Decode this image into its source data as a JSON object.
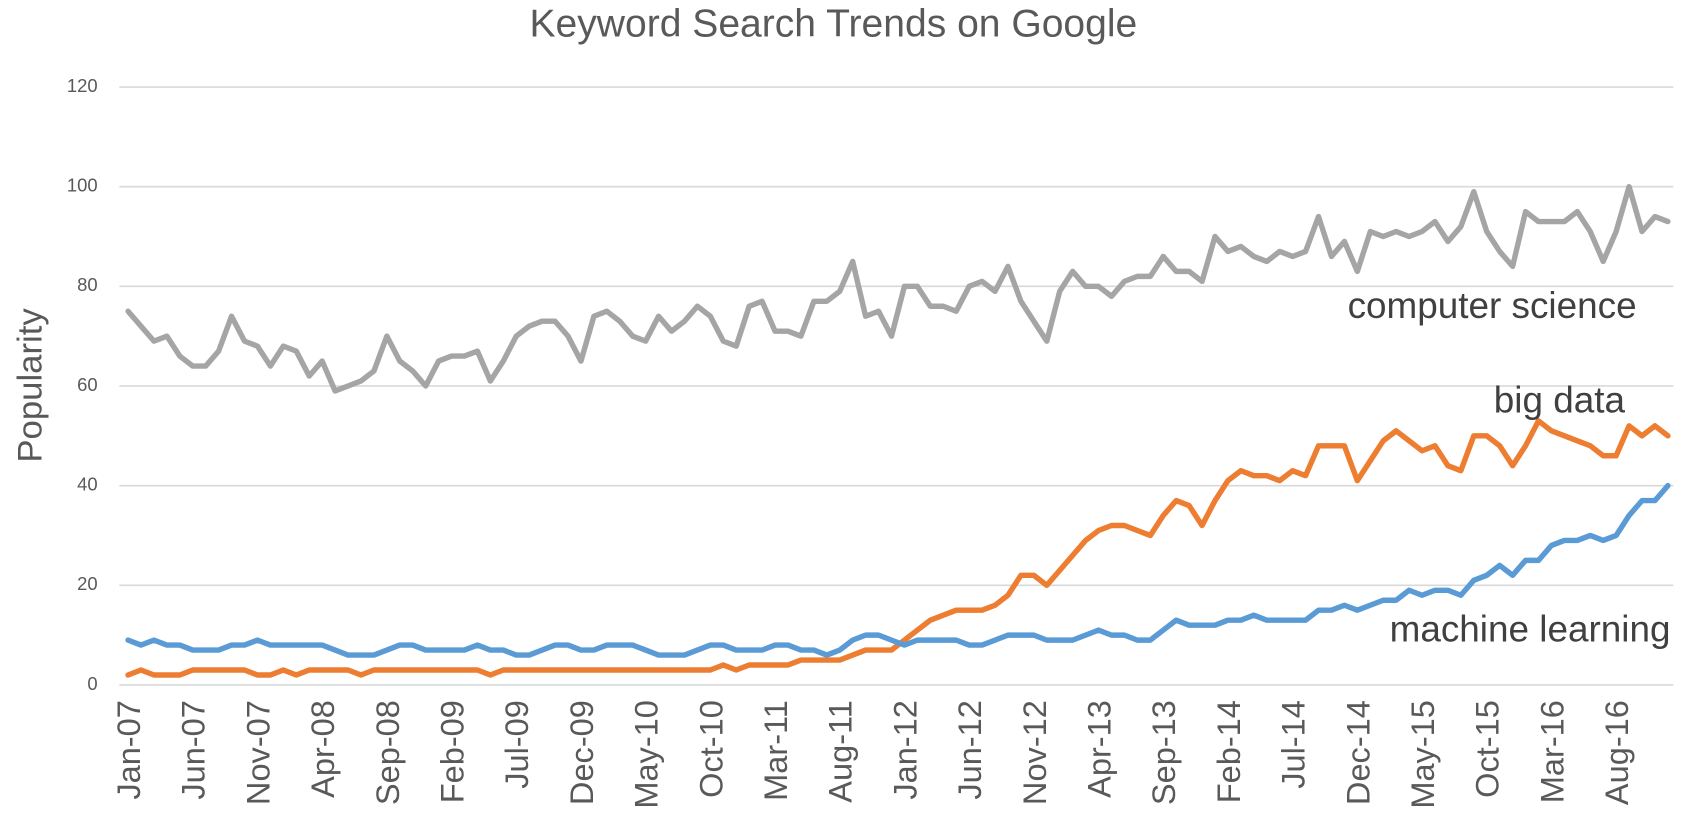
{
  "chart_data": {
    "type": "line",
    "title": "Keyword Search  Trends on Google",
    "ylabel": "Popularity",
    "categories": [
      "Jan-07",
      null,
      null,
      null,
      null,
      "Jun-07",
      null,
      null,
      null,
      null,
      "Nov-07",
      null,
      null,
      null,
      null,
      "Apr-08",
      null,
      null,
      null,
      null,
      "Sep-08",
      null,
      null,
      null,
      null,
      "Feb-09",
      null,
      null,
      null,
      null,
      "Jul-09",
      null,
      null,
      null,
      null,
      "Dec-09",
      null,
      null,
      null,
      null,
      "May-10",
      null,
      null,
      null,
      null,
      "Oct-10",
      null,
      null,
      null,
      null,
      "Mar-11",
      null,
      null,
      null,
      null,
      "Aug-11",
      null,
      null,
      null,
      null,
      "Jan-12",
      null,
      null,
      null,
      null,
      "Jun-12",
      null,
      null,
      null,
      null,
      "Nov-12",
      null,
      null,
      null,
      null,
      "Apr-13",
      null,
      null,
      null,
      null,
      "Sep-13",
      null,
      null,
      null,
      null,
      "Feb-14",
      null,
      null,
      null,
      null,
      "Jul-14",
      null,
      null,
      null,
      null,
      "Dec-14",
      null,
      null,
      null,
      null,
      "May-15",
      null,
      null,
      null,
      null,
      "Oct-15",
      null,
      null,
      null,
      null,
      "Mar-16",
      null,
      null,
      null,
      null,
      "Aug-16",
      null,
      null,
      null,
      null
    ],
    "series": [
      {
        "name": "computer science",
        "color": "#a5a5a5",
        "values": [
          75,
          72,
          69,
          70,
          66,
          64,
          64,
          67,
          74,
          69,
          68,
          64,
          68,
          67,
          62,
          65,
          59,
          60,
          61,
          63,
          70,
          65,
          63,
          60,
          65,
          66,
          66,
          67,
          61,
          65,
          70,
          72,
          73,
          73,
          70,
          65,
          74,
          75,
          73,
          70,
          69,
          74,
          71,
          73,
          76,
          74,
          69,
          68,
          76,
          77,
          71,
          71,
          70,
          77,
          77,
          79,
          85,
          74,
          75,
          70,
          80,
          80,
          76,
          76,
          75,
          80,
          81,
          79,
          84,
          77,
          73,
          69,
          79,
          83,
          80,
          80,
          78,
          81,
          82,
          82,
          86,
          83,
          83,
          81,
          90,
          87,
          88,
          86,
          85,
          87,
          86,
          87,
          94,
          86,
          89,
          83,
          91,
          90,
          91,
          90,
          91,
          93,
          89,
          92,
          99,
          91,
          87,
          84,
          95,
          93,
          93,
          93,
          95,
          91,
          85,
          91,
          100,
          91,
          94,
          93
        ]
      },
      {
        "name": "big data",
        "color": "#ed7d31",
        "values": [
          2,
          3,
          2,
          2,
          2,
          3,
          3,
          3,
          3,
          3,
          2,
          2,
          3,
          2,
          3,
          3,
          3,
          3,
          2,
          3,
          3,
          3,
          3,
          3,
          3,
          3,
          3,
          3,
          2,
          3,
          3,
          3,
          3,
          3,
          3,
          3,
          3,
          3,
          3,
          3,
          3,
          3,
          3,
          3,
          3,
          3,
          4,
          3,
          4,
          4,
          4,
          4,
          5,
          5,
          5,
          5,
          6,
          7,
          7,
          7,
          9,
          11,
          13,
          14,
          15,
          15,
          15,
          16,
          18,
          22,
          22,
          20,
          23,
          26,
          29,
          31,
          32,
          32,
          31,
          30,
          34,
          37,
          36,
          32,
          37,
          41,
          43,
          42,
          42,
          41,
          43,
          42,
          48,
          48,
          48,
          41,
          45,
          49,
          51,
          49,
          47,
          48,
          44,
          43,
          50,
          50,
          48,
          44,
          48,
          53,
          51,
          50,
          49,
          48,
          46,
          46,
          52,
          50,
          52,
          50
        ]
      },
      {
        "name": "machine learning",
        "color": "#5b9bd5",
        "values": [
          9,
          8,
          9,
          8,
          8,
          7,
          7,
          7,
          8,
          8,
          9,
          8,
          8,
          8,
          8,
          8,
          7,
          6,
          6,
          6,
          7,
          8,
          8,
          7,
          7,
          7,
          7,
          8,
          7,
          7,
          6,
          6,
          7,
          8,
          8,
          7,
          7,
          8,
          8,
          8,
          7,
          6,
          6,
          6,
          7,
          8,
          8,
          7,
          7,
          7,
          8,
          8,
          7,
          7,
          6,
          7,
          9,
          10,
          10,
          9,
          8,
          9,
          9,
          9,
          9,
          8,
          8,
          9,
          10,
          10,
          10,
          9,
          9,
          9,
          10,
          11,
          10,
          10,
          9,
          9,
          11,
          13,
          12,
          12,
          12,
          13,
          13,
          14,
          13,
          13,
          13,
          13,
          15,
          15,
          16,
          15,
          16,
          17,
          17,
          19,
          18,
          19,
          19,
          18,
          21,
          22,
          24,
          22,
          25,
          25,
          28,
          29,
          29,
          30,
          29,
          30,
          34,
          37,
          37,
          40
        ]
      }
    ],
    "ylim": [
      0,
      120
    ],
    "yticks": [
      0,
      20,
      40,
      60,
      80,
      100,
      120
    ],
    "grid": true
  }
}
